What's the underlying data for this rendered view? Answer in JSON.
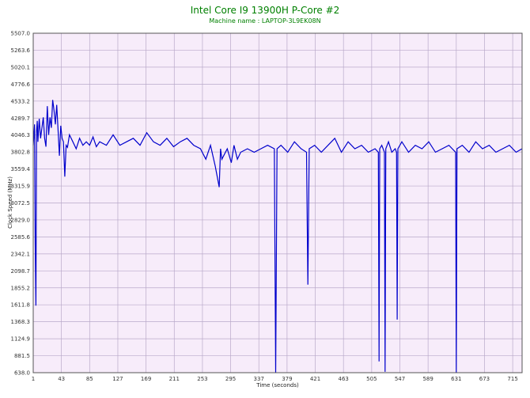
{
  "chart_data": {
    "type": "line",
    "title": "Intel Core I9 13900H P-Core #2",
    "subtitle": "Machine name : LAPTOP-3L9EK08N",
    "xlabel": "Time (seconds)",
    "ylabel": "Clock Speed (MHz)",
    "xlim": [
      1,
      729
    ],
    "ylim": [
      638.0,
      5507.0
    ],
    "x_ticks": [
      "1",
      "43",
      "85",
      "127",
      "169",
      "211",
      "253",
      "295",
      "337",
      "379",
      "421",
      "463",
      "505",
      "547",
      "589",
      "631",
      "673",
      "715"
    ],
    "y_ticks": [
      "5507.0",
      "5263.6",
      "5020.1",
      "4776.6",
      "4533.2",
      "4289.7",
      "4046.3",
      "3802.8",
      "3559.4",
      "3315.9",
      "3072.5",
      "2829.0",
      "2585.6",
      "2342.1",
      "2098.7",
      "1855.2",
      "1611.8",
      "1368.3",
      "1124.9",
      "881.5",
      "638.0"
    ],
    "grid": true,
    "background_color": "#f7ecfa",
    "grid_color": "#b9a9c9",
    "series": [
      {
        "color": "#0000cc",
        "x": [
          1,
          3,
          4,
          5,
          6,
          7,
          8,
          10,
          12,
          14,
          16,
          18,
          20,
          22,
          24,
          26,
          28,
          30,
          32,
          34,
          36,
          38,
          40,
          42,
          44,
          46,
          48,
          50,
          52,
          55,
          60,
          65,
          70,
          75,
          80,
          85,
          90,
          95,
          100,
          110,
          120,
          130,
          140,
          150,
          160,
          170,
          180,
          190,
          200,
          210,
          220,
          230,
          240,
          250,
          258,
          265,
          272,
          278,
          280,
          282,
          290,
          296,
          300,
          305,
          310,
          320,
          330,
          340,
          350,
          360,
          362,
          364,
          370,
          380,
          390,
          400,
          408,
          410,
          412,
          420,
          430,
          440,
          450,
          460,
          470,
          480,
          490,
          500,
          510,
          515,
          516,
          517,
          520,
          524,
          525,
          526,
          530,
          535,
          540,
          542,
          543,
          544,
          550,
          560,
          570,
          580,
          590,
          600,
          610,
          620,
          625,
          630,
          631,
          632,
          640,
          650,
          660,
          670,
          680,
          690,
          700,
          710,
          720,
          729
        ],
        "y": [
          3900,
          4200,
          2500,
          1600,
          4100,
          4250,
          3950,
          4280,
          4000,
          4150,
          4300,
          4000,
          3880,
          4460,
          4050,
          4300,
          4150,
          4550,
          4400,
          4200,
          4480,
          4120,
          3750,
          4180,
          4000,
          3950,
          3450,
          3900,
          3870,
          4050,
          3950,
          3850,
          4000,
          3900,
          3950,
          3900,
          4020,
          3880,
          3950,
          3900,
          4050,
          3900,
          3950,
          4000,
          3900,
          4080,
          3950,
          3900,
          4000,
          3880,
          3950,
          4000,
          3900,
          3850,
          3700,
          3900,
          3600,
          3300,
          3850,
          3700,
          3850,
          3650,
          3900,
          3700,
          3800,
          3850,
          3800,
          3850,
          3900,
          3850,
          640,
          3850,
          3900,
          3800,
          3950,
          3850,
          3800,
          1900,
          3850,
          3900,
          3800,
          3900,
          4000,
          3800,
          3950,
          3850,
          3900,
          3800,
          3850,
          3800,
          800,
          3850,
          3900,
          3800,
          650,
          3850,
          3950,
          3800,
          3850,
          3800,
          1400,
          3850,
          3950,
          3800,
          3900,
          3850,
          3950,
          3800,
          3850,
          3900,
          3850,
          3800,
          640,
          3850,
          3900,
          3800,
          3950,
          3850,
          3900,
          3800,
          3850,
          3900,
          3800,
          3850
        ]
      }
    ]
  }
}
